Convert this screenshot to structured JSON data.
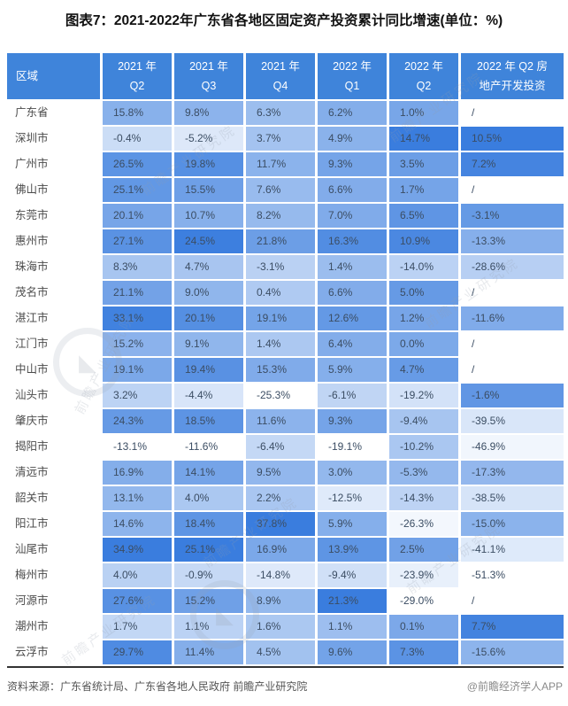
{
  "title": "图表7：2021-2022年广东省各地区固定资产投资累计同比增速(单位：%)",
  "footer": {
    "source": "资料来源：广东省统计局、广东省各地人民政府 前瞻产业研究院",
    "credit": "@前瞻经济学人APP"
  },
  "watermark": {
    "text": "前瞻产业研究院",
    "logo_glyph": "◣"
  },
  "colors": {
    "header_bg": "#3f84da",
    "header_text": "#ffffff",
    "heat_max": "#3a7dde",
    "heat_min": "#ffffff",
    "value_text": "#3b4d63",
    "region_text": "#4c4c4c",
    "title_text": "#111111",
    "source_text": "#555555",
    "credit_text": "#8a8a8a",
    "table_bottom_border": "#333333"
  },
  "table": {
    "region_header": "区域",
    "columns": [
      [
        "2021 年",
        "Q2"
      ],
      [
        "2021 年",
        "Q3"
      ],
      [
        "2021 年",
        "Q4"
      ],
      [
        "2022 年",
        "Q1"
      ],
      [
        "2022 年",
        "Q2"
      ],
      [
        "2022 年 Q2 房",
        "地产开发投资"
      ]
    ],
    "rows": [
      {
        "region": "广东省",
        "values": [
          "15.8%",
          "9.8%",
          "6.3%",
          "6.2%",
          "1.0%",
          "/"
        ]
      },
      {
        "region": "深圳市",
        "values": [
          "-0.4%",
          "-5.2%",
          "3.7%",
          "4.9%",
          "14.7%",
          "10.5%"
        ]
      },
      {
        "region": "广州市",
        "values": [
          "26.5%",
          "19.8%",
          "11.7%",
          "9.3%",
          "3.5%",
          "7.2%"
        ]
      },
      {
        "region": "佛山市",
        "values": [
          "25.1%",
          "15.5%",
          "7.6%",
          "6.6%",
          "1.7%",
          "/"
        ]
      },
      {
        "region": "东莞市",
        "values": [
          "20.1%",
          "10.7%",
          "8.2%",
          "7.0%",
          "6.5%",
          "-3.1%"
        ]
      },
      {
        "region": "惠州市",
        "values": [
          "27.1%",
          "24.5%",
          "21.8%",
          "16.3%",
          "10.9%",
          "-13.3%"
        ]
      },
      {
        "region": "珠海市",
        "values": [
          "8.3%",
          "4.7%",
          "-3.1%",
          "1.4%",
          "-14.0%",
          "-28.6%"
        ]
      },
      {
        "region": "茂名市",
        "values": [
          "21.1%",
          "9.0%",
          "0.4%",
          "6.6%",
          "5.0%",
          "/"
        ]
      },
      {
        "region": "湛江市",
        "values": [
          "33.1%",
          "20.1%",
          "19.1%",
          "12.6%",
          "1.2%",
          "-11.6%"
        ]
      },
      {
        "region": "江门市",
        "values": [
          "15.2%",
          "9.1%",
          "1.4%",
          "6.4%",
          "0.0%",
          "/"
        ]
      },
      {
        "region": "中山市",
        "values": [
          "19.1%",
          "19.4%",
          "15.3%",
          "5.9%",
          "4.7%",
          "/"
        ]
      },
      {
        "region": "汕头市",
        "values": [
          "3.2%",
          "-4.4%",
          "-25.3%",
          "-6.1%",
          "-19.2%",
          "-1.6%"
        ]
      },
      {
        "region": "肇庆市",
        "values": [
          "24.3%",
          "18.5%",
          "11.6%",
          "9.3%",
          "-9.4%",
          "-39.5%"
        ]
      },
      {
        "region": "揭阳市",
        "values": [
          "-13.1%",
          "-11.6%",
          "-6.4%",
          "-19.1%",
          "-10.2%",
          "-46.9%"
        ]
      },
      {
        "region": "清远市",
        "values": [
          "16.9%",
          "14.1%",
          "9.5%",
          "3.0%",
          "-5.3%",
          "-17.3%"
        ]
      },
      {
        "region": "韶关市",
        "values": [
          "13.1%",
          "4.0%",
          "2.2%",
          "-12.5%",
          "-14.3%",
          "-38.5%"
        ]
      },
      {
        "region": "阳江市",
        "values": [
          "14.6%",
          "18.4%",
          "37.8%",
          "5.9%",
          "-26.3%",
          "-15.0%"
        ]
      },
      {
        "region": "汕尾市",
        "values": [
          "34.9%",
          "25.1%",
          "16.9%",
          "13.9%",
          "2.5%",
          "-41.1%"
        ]
      },
      {
        "region": "梅州市",
        "values": [
          "4.0%",
          "-0.9%",
          "-14.8%",
          "-9.4%",
          "-23.9%",
          "-51.3%"
        ]
      },
      {
        "region": "河源市",
        "values": [
          "27.6%",
          "15.2%",
          "8.9%",
          "21.3%",
          "-29.0%",
          "/"
        ]
      },
      {
        "region": "潮州市",
        "values": [
          "1.7%",
          "1.1%",
          "1.6%",
          "1.1%",
          "0.1%",
          "7.7%"
        ]
      },
      {
        "region": "云浮市",
        "values": [
          "29.7%",
          "11.4%",
          "4.5%",
          "9.6%",
          "7.3%",
          "-15.6%"
        ]
      }
    ]
  },
  "chart_data": {
    "type": "heatmap",
    "title": "图表7：2021-2022年广东省各地区固定资产投资累计同比增速",
    "unit": "%",
    "columns": [
      "2021年Q2",
      "2021年Q3",
      "2021年Q4",
      "2022年Q1",
      "2022年Q2",
      "2022年Q2房地产开发投资"
    ],
    "regions": [
      "广东省",
      "深圳市",
      "广州市",
      "佛山市",
      "东莞市",
      "惠州市",
      "珠海市",
      "茂名市",
      "湛江市",
      "江门市",
      "中山市",
      "汕头市",
      "肇庆市",
      "揭阳市",
      "清远市",
      "韶关市",
      "阳江市",
      "汕尾市",
      "梅州市",
      "河源市",
      "潮州市",
      "云浮市"
    ],
    "values": [
      [
        15.8,
        9.8,
        6.3,
        6.2,
        1.0,
        null
      ],
      [
        -0.4,
        -5.2,
        3.7,
        4.9,
        14.7,
        10.5
      ],
      [
        26.5,
        19.8,
        11.7,
        9.3,
        3.5,
        7.2
      ],
      [
        25.1,
        15.5,
        7.6,
        6.6,
        1.7,
        null
      ],
      [
        20.1,
        10.7,
        8.2,
        7.0,
        6.5,
        -3.1
      ],
      [
        27.1,
        24.5,
        21.8,
        16.3,
        10.9,
        -13.3
      ],
      [
        8.3,
        4.7,
        -3.1,
        1.4,
        -14.0,
        -28.6
      ],
      [
        21.1,
        9.0,
        0.4,
        6.6,
        5.0,
        null
      ],
      [
        33.1,
        20.1,
        19.1,
        12.6,
        1.2,
        -11.6
      ],
      [
        15.2,
        9.1,
        1.4,
        6.4,
        0.0,
        null
      ],
      [
        19.1,
        19.4,
        15.3,
        5.9,
        4.7,
        null
      ],
      [
        3.2,
        -4.4,
        -25.3,
        -6.1,
        -19.2,
        -1.6
      ],
      [
        24.3,
        18.5,
        11.6,
        9.3,
        -9.4,
        -39.5
      ],
      [
        -13.1,
        -11.6,
        -6.4,
        -19.1,
        -10.2,
        -46.9
      ],
      [
        16.9,
        14.1,
        9.5,
        3.0,
        -5.3,
        -17.3
      ],
      [
        13.1,
        4.0,
        2.2,
        -12.5,
        -14.3,
        -38.5
      ],
      [
        14.6,
        18.4,
        37.8,
        5.9,
        -26.3,
        -15.0
      ],
      [
        34.9,
        25.1,
        16.9,
        13.9,
        2.5,
        -41.1
      ],
      [
        4.0,
        -0.9,
        -14.8,
        -9.4,
        -23.9,
        -51.3
      ],
      [
        27.6,
        15.2,
        8.9,
        21.3,
        -29.0,
        null
      ],
      [
        1.7,
        1.1,
        1.6,
        1.1,
        0.1,
        7.7
      ],
      [
        29.7,
        11.4,
        4.5,
        9.6,
        7.3,
        -15.6
      ]
    ],
    "null_marker": "/",
    "legend": "cell shading: per-column linear color scale, white = column minimum, #3a7dde = column maximum; '/' cells white",
    "grid": false
  }
}
